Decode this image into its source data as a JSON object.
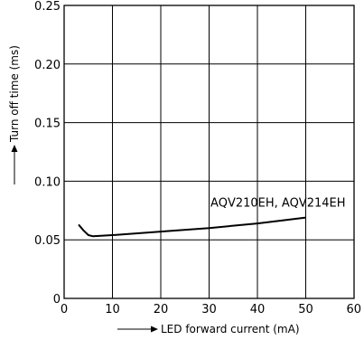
{
  "chart_data": {
    "type": "line",
    "xlabel": "LED forward current (mA)",
    "ylabel": "Turn off time (ms)",
    "xlim": [
      0,
      60
    ],
    "ylim": [
      0,
      0.25
    ],
    "x_ticks": [
      0,
      10,
      20,
      30,
      40,
      50,
      60
    ],
    "y_ticks": [
      0,
      0.05,
      0.1,
      0.15,
      0.2,
      0.25
    ],
    "x_tick_labels": [
      "0",
      "10",
      "20",
      "30",
      "40",
      "50",
      "60"
    ],
    "y_tick_labels": [
      "0",
      "0.05",
      "0.10",
      "0.15",
      "0.20",
      "0.25"
    ],
    "grid": true,
    "series": [
      {
        "name": "AQV210EH, AQV214EH",
        "x": [
          3,
          4,
          5,
          6,
          10,
          20,
          30,
          40,
          50
        ],
        "y": [
          0.063,
          0.058,
          0.054,
          0.053,
          0.054,
          0.057,
          0.06,
          0.064,
          0.069
        ]
      }
    ],
    "annotations": [
      {
        "text": "AQV210EH, AQV214EH",
        "x": 50,
        "y": 0.069
      }
    ]
  }
}
